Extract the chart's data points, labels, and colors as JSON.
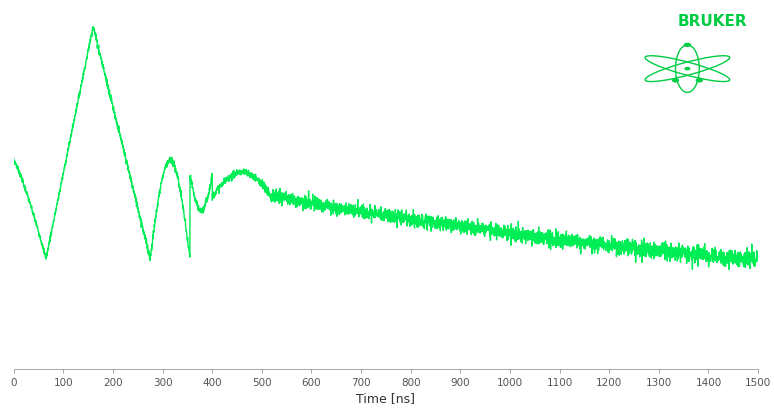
{
  "line_color": "#00ee55",
  "background_color": "#ffffff",
  "xlabel": "Time [ns]",
  "xlabel_fontsize": 9,
  "xlim": [
    0,
    1500
  ],
  "bruker_color": "#00cc44",
  "bruker_text": "BRUKER",
  "bruker_fontsize": 11,
  "figsize": [
    7.74,
    4.16
  ],
  "dpi": 100
}
